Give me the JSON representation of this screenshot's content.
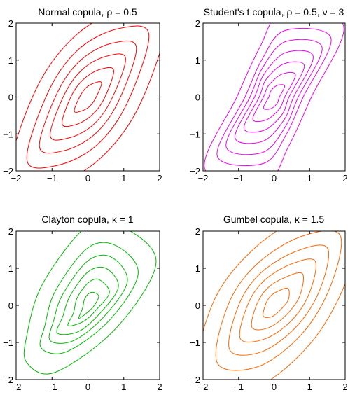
{
  "chart_data": [
    {
      "type": "line",
      "title": "Normal copula, ρ = 0.5",
      "xlabel": "",
      "ylabel": "",
      "xlim": [
        -2,
        2
      ],
      "ylim": [
        -2,
        2
      ],
      "xticks": [
        "−2",
        "−1",
        "0",
        "1",
        "2"
      ],
      "yticks": [
        "−2",
        "−1",
        "0",
        "1",
        "2"
      ],
      "color": "#ff0000",
      "series": [
        {
          "points": [
            [
              0.38,
              0.38
            ],
            [
              0.18,
              0.38
            ],
            [
              -0.05,
              0.25
            ],
            [
              -0.22,
              0.02
            ],
            [
              -0.38,
              -0.38
            ],
            [
              -0.18,
              -0.38
            ],
            [
              0.05,
              -0.25
            ],
            [
              0.22,
              -0.02
            ]
          ]
        },
        {
          "points": [
            [
              0.72,
              0.72
            ],
            [
              0.35,
              0.75
            ],
            [
              -0.1,
              0.5
            ],
            [
              -0.45,
              0.05
            ],
            [
              -0.72,
              -0.72
            ],
            [
              -0.35,
              -0.75
            ],
            [
              0.1,
              -0.5
            ],
            [
              0.45,
              -0.05
            ]
          ]
        },
        {
          "points": [
            [
              1.05,
              1.05
            ],
            [
              0.5,
              1.1
            ],
            [
              -0.15,
              0.75
            ],
            [
              -0.65,
              0.08
            ],
            [
              -1.05,
              -1.05
            ],
            [
              -0.5,
              -1.1
            ],
            [
              0.15,
              -0.75
            ],
            [
              0.65,
              -0.08
            ]
          ]
        },
        {
          "points": [
            [
              1.35,
              1.35
            ],
            [
              0.65,
              1.45
            ],
            [
              -0.2,
              1.0
            ],
            [
              -0.85,
              0.12
            ],
            [
              -1.35,
              -1.35
            ],
            [
              -0.65,
              -1.45
            ],
            [
              0.2,
              -1.0
            ],
            [
              0.85,
              -0.12
            ]
          ]
        },
        {
          "points": [
            [
              1.7,
              1.7
            ],
            [
              0.85,
              1.85
            ],
            [
              -0.25,
              1.3
            ],
            [
              -1.1,
              0.15
            ],
            [
              -1.7,
              -1.7
            ],
            [
              -0.85,
              -1.85
            ],
            [
              0.25,
              -1.3
            ],
            [
              1.1,
              -0.15
            ]
          ]
        },
        {
          "points": [
            [
              2.2,
              2.2
            ],
            [
              1.1,
              2.4
            ],
            [
              -0.3,
              1.7
            ],
            [
              -1.45,
              0.2
            ],
            [
              -2.2,
              -2.2
            ],
            [
              -1.1,
              -2.4
            ],
            [
              0.3,
              -1.7
            ],
            [
              1.45,
              -0.2
            ]
          ]
        }
      ]
    },
    {
      "type": "line",
      "title": "Student's t copula, ρ = 0.5, ν = 3",
      "xlabel": "",
      "ylabel": "",
      "xlim": [
        -2,
        2
      ],
      "ylim": [
        -2,
        2
      ],
      "xticks": [
        "−2",
        "−1",
        "0",
        "1",
        "2"
      ],
      "yticks": [
        "−2",
        "−1",
        "0",
        "1",
        "2"
      ],
      "color": "#ee00ee",
      "series": [
        {
          "points": [
            [
              0.3,
              0.3
            ],
            [
              0.1,
              0.32
            ],
            [
              -0.08,
              0.18
            ],
            [
              -0.15,
              0.0
            ],
            [
              -0.3,
              -0.3
            ],
            [
              -0.1,
              -0.32
            ],
            [
              0.08,
              -0.18
            ],
            [
              0.15,
              0.0
            ]
          ]
        },
        {
          "points": [
            [
              0.6,
              0.6
            ],
            [
              0.22,
              0.62
            ],
            [
              -0.15,
              0.32
            ],
            [
              -0.3,
              0.0
            ],
            [
              -0.6,
              -0.6
            ],
            [
              -0.22,
              -0.62
            ],
            [
              0.15,
              -0.32
            ],
            [
              0.3,
              0.0
            ]
          ]
        },
        {
          "points": [
            [
              0.85,
              0.85
            ],
            [
              0.28,
              0.9
            ],
            [
              -0.22,
              0.48
            ],
            [
              -0.42,
              0.0
            ],
            [
              -0.85,
              -0.85
            ],
            [
              -0.28,
              -0.9
            ],
            [
              0.22,
              -0.48
            ],
            [
              0.42,
              0.0
            ]
          ]
        },
        {
          "points": [
            [
              1.1,
              1.1
            ],
            [
              0.32,
              1.2
            ],
            [
              -0.28,
              0.62
            ],
            [
              -0.55,
              0.0
            ],
            [
              -1.1,
              -1.1
            ],
            [
              -0.32,
              -1.2
            ],
            [
              0.28,
              -0.62
            ],
            [
              0.55,
              0.0
            ]
          ]
        },
        {
          "points": [
            [
              1.35,
              1.35
            ],
            [
              0.32,
              1.5
            ],
            [
              -0.32,
              0.8
            ],
            [
              -0.68,
              0.0
            ],
            [
              -1.35,
              -1.35
            ],
            [
              -0.32,
              -1.5
            ],
            [
              0.32,
              -0.8
            ],
            [
              0.68,
              0.0
            ]
          ]
        },
        {
          "points": [
            [
              1.6,
              1.6
            ],
            [
              0.3,
              1.8
            ],
            [
              -0.35,
              1.0
            ],
            [
              -0.82,
              0.0
            ],
            [
              -1.6,
              -1.6
            ],
            [
              -0.3,
              -1.8
            ],
            [
              0.35,
              -1.0
            ],
            [
              0.82,
              0.0
            ]
          ]
        },
        {
          "points": [
            [
              1.95,
              1.95
            ],
            [
              0.25,
              2.3
            ],
            [
              -0.4,
              1.35
            ],
            [
              -1.05,
              0.0
            ],
            [
              -1.95,
              -1.95
            ],
            [
              -0.25,
              -2.3
            ],
            [
              0.4,
              -1.35
            ],
            [
              1.05,
              0.0
            ]
          ]
        }
      ]
    },
    {
      "type": "line",
      "title": "Clayton copula, κ = 1",
      "xlabel": "",
      "ylabel": "",
      "xlim": [
        -2,
        2
      ],
      "ylim": [
        -2,
        2
      ],
      "xticks": [
        "−2",
        "−1",
        "0",
        "1",
        "2"
      ],
      "yticks": [
        "−2",
        "−1",
        "0",
        "1",
        "2"
      ],
      "color": "#00bb00",
      "series": [
        {
          "points": [
            [
              0.15,
              0.35
            ],
            [
              0.0,
              0.3
            ],
            [
              -0.1,
              0.15
            ],
            [
              -0.15,
              -0.08
            ],
            [
              -0.25,
              -0.35
            ],
            [
              0.0,
              -0.18
            ],
            [
              0.18,
              0.0
            ],
            [
              0.3,
              0.25
            ]
          ]
        },
        {
          "points": [
            [
              0.3,
              0.7
            ],
            [
              0.0,
              0.6
            ],
            [
              -0.3,
              0.2
            ],
            [
              -0.4,
              -0.2
            ],
            [
              -0.55,
              -0.55
            ],
            [
              -0.1,
              -0.42
            ],
            [
              0.25,
              -0.1
            ],
            [
              0.6,
              0.35
            ]
          ]
        },
        {
          "points": [
            [
              0.5,
              1.0
            ],
            [
              0.0,
              0.9
            ],
            [
              -0.5,
              0.25
            ],
            [
              -0.7,
              -0.3
            ],
            [
              -0.85,
              -0.75
            ],
            [
              -0.25,
              -0.7
            ],
            [
              0.35,
              -0.2
            ],
            [
              0.85,
              0.5
            ]
          ]
        },
        {
          "points": [
            [
              0.65,
              1.3
            ],
            [
              0.0,
              1.2
            ],
            [
              -0.7,
              0.3
            ],
            [
              -0.95,
              -0.4
            ],
            [
              -1.05,
              -0.95
            ],
            [
              -0.4,
              -0.95
            ],
            [
              0.45,
              -0.3
            ],
            [
              1.1,
              0.65
            ]
          ]
        },
        {
          "points": [
            [
              0.8,
              1.6
            ],
            [
              0.0,
              1.55
            ],
            [
              -0.9,
              0.4
            ],
            [
              -1.2,
              -0.55
            ],
            [
              -1.3,
              -1.15
            ],
            [
              -0.6,
              -1.25
            ],
            [
              0.6,
              -0.4
            ],
            [
              1.4,
              0.85
            ]
          ]
        },
        {
          "points": [
            [
              1.0,
              2.1
            ],
            [
              0.0,
              2.15
            ],
            [
              -1.25,
              0.6
            ],
            [
              -1.7,
              -0.8
            ],
            [
              -1.7,
              -1.55
            ],
            [
              -0.9,
              -1.8
            ],
            [
              0.8,
              -0.6
            ],
            [
              1.9,
              1.15
            ]
          ]
        }
      ]
    },
    {
      "type": "line",
      "title": "Gumbel copula, κ = 1.5",
      "xlabel": "",
      "ylabel": "",
      "xlim": [
        -2,
        2
      ],
      "ylim": [
        -2,
        2
      ],
      "xticks": [
        "−2",
        "−1",
        "0",
        "1",
        "2"
      ],
      "yticks": [
        "−2",
        "−1",
        "0",
        "1",
        "2"
      ],
      "color": "#ff6600",
      "series": [
        {
          "points": [
            [
              0.4,
              0.45
            ],
            [
              0.15,
              0.4
            ],
            [
              -0.1,
              0.25
            ],
            [
              -0.25,
              0.0
            ],
            [
              -0.3,
              -0.3
            ],
            [
              -0.05,
              -0.3
            ],
            [
              0.2,
              -0.1
            ],
            [
              0.4,
              0.15
            ]
          ]
        },
        {
          "points": [
            [
              0.8,
              0.85
            ],
            [
              0.3,
              0.75
            ],
            [
              -0.2,
              0.45
            ],
            [
              -0.5,
              0.0
            ],
            [
              -0.62,
              -0.6
            ],
            [
              -0.15,
              -0.6
            ],
            [
              0.35,
              -0.25
            ],
            [
              0.72,
              0.25
            ]
          ]
        },
        {
          "points": [
            [
              1.15,
              1.2
            ],
            [
              0.45,
              1.1
            ],
            [
              -0.3,
              0.65
            ],
            [
              -0.75,
              0.0
            ],
            [
              -0.95,
              -0.9
            ],
            [
              -0.25,
              -0.9
            ],
            [
              0.5,
              -0.4
            ],
            [
              1.0,
              0.35
            ]
          ]
        },
        {
          "points": [
            [
              1.5,
              1.55
            ],
            [
              0.6,
              1.45
            ],
            [
              -0.4,
              0.85
            ],
            [
              -1.0,
              0.0
            ],
            [
              -1.25,
              -1.2
            ],
            [
              -0.35,
              -1.25
            ],
            [
              0.65,
              -0.55
            ],
            [
              1.3,
              0.45
            ]
          ]
        },
        {
          "points": [
            [
              1.85,
              1.9
            ],
            [
              0.75,
              1.85
            ],
            [
              -0.5,
              1.1
            ],
            [
              -1.3,
              0.0
            ],
            [
              -1.6,
              -1.55
            ],
            [
              -0.45,
              -1.65
            ],
            [
              0.8,
              -0.75
            ],
            [
              1.6,
              0.55
            ]
          ]
        },
        {
          "points": [
            [
              2.4,
              2.45
            ],
            [
              0.95,
              2.45
            ],
            [
              -0.65,
              1.45
            ],
            [
              -1.75,
              0.0
            ],
            [
              -2.15,
              -2.1
            ],
            [
              -0.6,
              -2.25
            ],
            [
              1.0,
              -1.05
            ],
            [
              2.05,
              0.7
            ]
          ]
        }
      ]
    }
  ]
}
